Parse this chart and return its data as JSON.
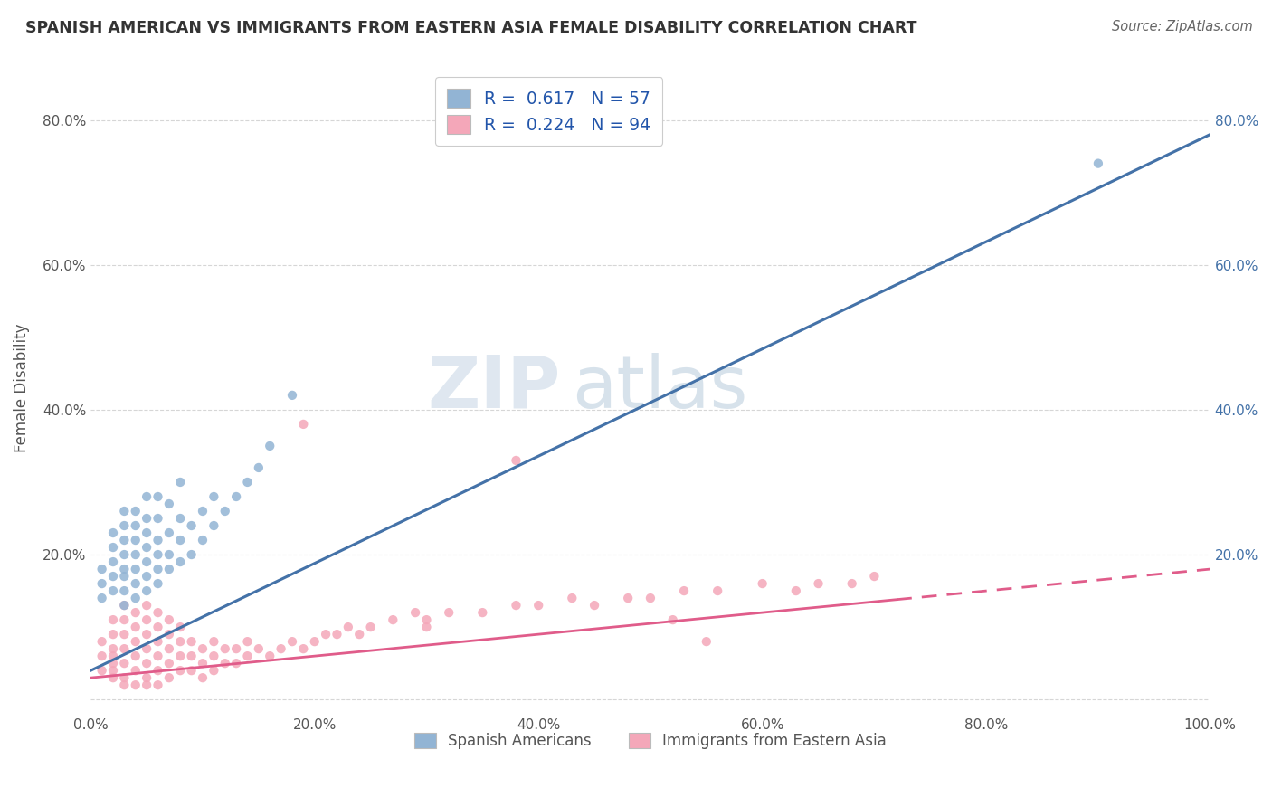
{
  "title": "SPANISH AMERICAN VS IMMIGRANTS FROM EASTERN ASIA FEMALE DISABILITY CORRELATION CHART",
  "source": "Source: ZipAtlas.com",
  "ylabel": "Female Disability",
  "xlim": [
    0,
    1.0
  ],
  "ylim": [
    -0.02,
    0.88
  ],
  "xtick_positions": [
    0.0,
    0.2,
    0.4,
    0.6,
    0.8,
    1.0
  ],
  "xtick_labels": [
    "0.0%",
    "20.0%",
    "40.0%",
    "60.0%",
    "80.0%",
    "100.0%"
  ],
  "ytick_positions": [
    0.0,
    0.2,
    0.4,
    0.6,
    0.8
  ],
  "ytick_labels_left": [
    "",
    "20.0%",
    "40.0%",
    "60.0%",
    "80.0%"
  ],
  "ytick_labels_right": [
    "",
    "20.0%",
    "40.0%",
    "60.0%",
    "80.0%"
  ],
  "blue_R": "0.617",
  "blue_N": "57",
  "pink_R": "0.224",
  "pink_N": "94",
  "blue_color": "#92b4d4",
  "pink_color": "#f4a7b9",
  "blue_line_color": "#4472a8",
  "pink_line_color": "#e05c8a",
  "watermark": "ZIPatlas",
  "watermark_color": "#c8d8e8",
  "legend_labels": [
    "Spanish Americans",
    "Immigrants from Eastern Asia"
  ],
  "blue_scatter_x": [
    0.01,
    0.01,
    0.01,
    0.02,
    0.02,
    0.02,
    0.02,
    0.02,
    0.03,
    0.03,
    0.03,
    0.03,
    0.03,
    0.03,
    0.03,
    0.03,
    0.04,
    0.04,
    0.04,
    0.04,
    0.04,
    0.04,
    0.04,
    0.05,
    0.05,
    0.05,
    0.05,
    0.05,
    0.05,
    0.05,
    0.06,
    0.06,
    0.06,
    0.06,
    0.06,
    0.06,
    0.07,
    0.07,
    0.07,
    0.07,
    0.08,
    0.08,
    0.08,
    0.08,
    0.09,
    0.09,
    0.1,
    0.1,
    0.11,
    0.11,
    0.12,
    0.13,
    0.14,
    0.15,
    0.16,
    0.18,
    0.9
  ],
  "blue_scatter_y": [
    0.14,
    0.16,
    0.18,
    0.15,
    0.17,
    0.19,
    0.21,
    0.23,
    0.13,
    0.15,
    0.17,
    0.18,
    0.2,
    0.22,
    0.24,
    0.26,
    0.14,
    0.16,
    0.18,
    0.2,
    0.22,
    0.24,
    0.26,
    0.15,
    0.17,
    0.19,
    0.21,
    0.23,
    0.25,
    0.28,
    0.16,
    0.18,
    0.2,
    0.22,
    0.25,
    0.28,
    0.18,
    0.2,
    0.23,
    0.27,
    0.19,
    0.22,
    0.25,
    0.3,
    0.2,
    0.24,
    0.22,
    0.26,
    0.24,
    0.28,
    0.26,
    0.28,
    0.3,
    0.32,
    0.35,
    0.42,
    0.74
  ],
  "pink_scatter_x": [
    0.01,
    0.01,
    0.01,
    0.02,
    0.02,
    0.02,
    0.02,
    0.02,
    0.02,
    0.02,
    0.03,
    0.03,
    0.03,
    0.03,
    0.03,
    0.03,
    0.03,
    0.04,
    0.04,
    0.04,
    0.04,
    0.04,
    0.04,
    0.05,
    0.05,
    0.05,
    0.05,
    0.05,
    0.05,
    0.05,
    0.06,
    0.06,
    0.06,
    0.06,
    0.06,
    0.06,
    0.07,
    0.07,
    0.07,
    0.07,
    0.07,
    0.08,
    0.08,
    0.08,
    0.08,
    0.09,
    0.09,
    0.09,
    0.1,
    0.1,
    0.1,
    0.11,
    0.11,
    0.11,
    0.12,
    0.12,
    0.13,
    0.13,
    0.14,
    0.14,
    0.15,
    0.16,
    0.17,
    0.18,
    0.19,
    0.2,
    0.21,
    0.22,
    0.23,
    0.24,
    0.25,
    0.27,
    0.29,
    0.3,
    0.32,
    0.35,
    0.38,
    0.4,
    0.43,
    0.45,
    0.48,
    0.5,
    0.53,
    0.56,
    0.6,
    0.63,
    0.65,
    0.68,
    0.7,
    0.38,
    0.52,
    0.19,
    0.55,
    0.3
  ],
  "pink_scatter_y": [
    0.04,
    0.06,
    0.08,
    0.03,
    0.05,
    0.07,
    0.09,
    0.11,
    0.04,
    0.06,
    0.03,
    0.05,
    0.07,
    0.09,
    0.11,
    0.13,
    0.02,
    0.04,
    0.06,
    0.08,
    0.1,
    0.12,
    0.02,
    0.03,
    0.05,
    0.07,
    0.09,
    0.11,
    0.13,
    0.02,
    0.04,
    0.06,
    0.08,
    0.1,
    0.12,
    0.02,
    0.03,
    0.05,
    0.07,
    0.09,
    0.11,
    0.04,
    0.06,
    0.08,
    0.1,
    0.04,
    0.06,
    0.08,
    0.03,
    0.05,
    0.07,
    0.04,
    0.06,
    0.08,
    0.05,
    0.07,
    0.05,
    0.07,
    0.06,
    0.08,
    0.07,
    0.06,
    0.07,
    0.08,
    0.07,
    0.08,
    0.09,
    0.09,
    0.1,
    0.09,
    0.1,
    0.11,
    0.12,
    0.11,
    0.12,
    0.12,
    0.13,
    0.13,
    0.14,
    0.13,
    0.14,
    0.14,
    0.15,
    0.15,
    0.16,
    0.15,
    0.16,
    0.16,
    0.17,
    0.33,
    0.11,
    0.38,
    0.08,
    0.1
  ]
}
